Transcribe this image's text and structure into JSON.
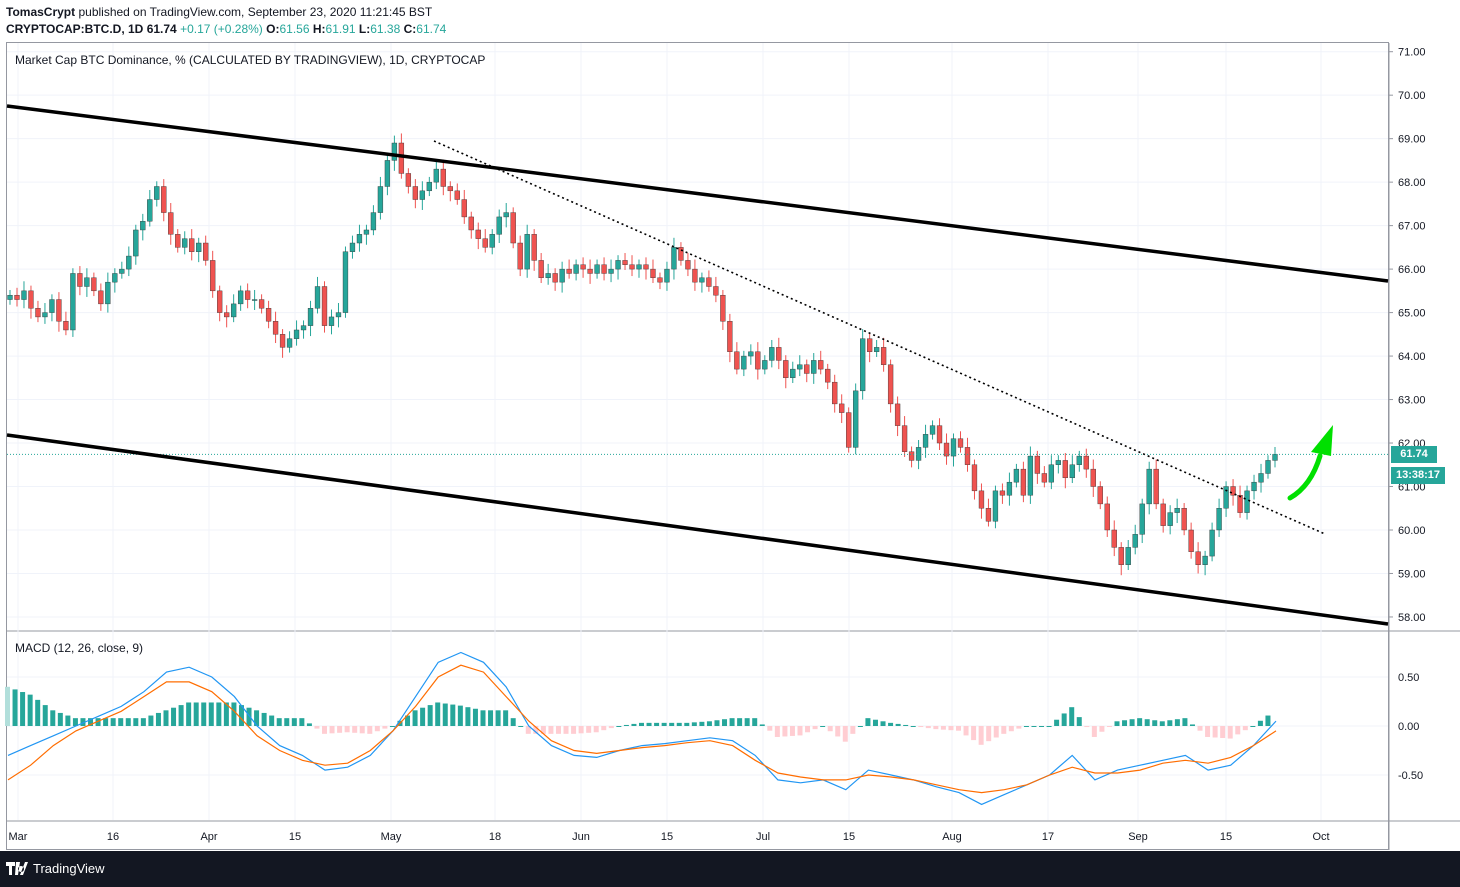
{
  "header": {
    "author": "TomasCrypt",
    "published": "published on TradingView.com, September 23, 2020 11:21:45 BST",
    "symbol": "CRYPTOCAP:BTC.D, 1D",
    "last": "61.74",
    "change": "+0.17 (+0.28%)",
    "o_label": "O:",
    "o": "61.56",
    "h_label": "H:",
    "h": "61.91",
    "l_label": "L:",
    "l": "61.38",
    "c_label": "C:",
    "c": "61.74"
  },
  "main_panel": {
    "title": "Market Cap BTC Dominance, % (CALCULATED BY TRADINGVIEW), 1D, CRYPTOCAP",
    "price_label": "61.74",
    "countdown_label": "13:38:17"
  },
  "macd_panel": {
    "title": "MACD (12, 26, close, 9)"
  },
  "colors": {
    "up": "#26a69a",
    "down": "#ef5350",
    "macd_line": "#2196f3",
    "signal_line": "#ff6d00",
    "arrow": "#00e000",
    "channel": "#000000"
  },
  "footer": {
    "brand": "TradingView"
  },
  "chart_data": {
    "type": "candlestick",
    "y_axis_ticks": [
      "71.00",
      "70.00",
      "69.00",
      "68.00",
      "67.00",
      "66.00",
      "65.00",
      "64.00",
      "63.00",
      "62.00",
      "61.00",
      "60.00",
      "59.00",
      "58.00"
    ],
    "ylim": [
      57.7,
      71.2
    ],
    "macd_axis_ticks": [
      "0.50",
      "0.00",
      "-0.50"
    ],
    "x_axis_ticks": [
      "Mar",
      "16",
      "Apr",
      "15",
      "May",
      "18",
      "Jun",
      "15",
      "Jul",
      "15",
      "Aug",
      "17",
      "Sep",
      "15",
      "Oct"
    ],
    "closes": [
      65.4,
      65.3,
      65.5,
      65.1,
      64.9,
      65.0,
      65.3,
      64.8,
      64.6,
      65.9,
      65.6,
      65.8,
      65.5,
      65.2,
      65.7,
      65.9,
      66.0,
      66.3,
      66.9,
      67.1,
      67.6,
      67.9,
      67.3,
      66.8,
      66.5,
      66.7,
      66.4,
      66.6,
      66.2,
      65.5,
      65.0,
      64.9,
      65.2,
      65.5,
      65.3,
      65.3,
      65.1,
      64.8,
      64.5,
      64.2,
      64.4,
      64.6,
      64.7,
      65.1,
      65.6,
      64.7,
      64.9,
      65.0,
      66.4,
      66.6,
      66.8,
      66.9,
      67.3,
      67.9,
      68.5,
      68.9,
      68.2,
      67.9,
      67.6,
      67.8,
      68.0,
      68.3,
      67.9,
      67.8,
      67.6,
      67.2,
      66.9,
      66.7,
      66.5,
      66.8,
      67.2,
      67.3,
      66.6,
      66.0,
      66.8,
      66.2,
      65.8,
      65.9,
      65.7,
      66.0,
      65.9,
      66.1,
      66.0,
      65.9,
      66.1,
      65.9,
      66.0,
      66.2,
      66.1,
      66.0,
      66.1,
      66.0,
      65.8,
      65.7,
      66.0,
      66.5,
      66.2,
      66.0,
      65.7,
      65.8,
      65.6,
      65.4,
      64.8,
      64.1,
      63.7,
      64.0,
      64.1,
      63.7,
      63.9,
      64.2,
      63.9,
      63.5,
      63.7,
      63.8,
      63.6,
      63.9,
      63.7,
      63.4,
      62.9,
      62.7,
      61.9,
      63.2,
      64.4,
      64.1,
      64.2,
      63.8,
      62.9,
      62.4,
      61.8,
      61.6,
      61.9,
      62.2,
      62.4,
      62.0,
      61.7,
      62.1,
      61.9,
      61.5,
      60.9,
      60.5,
      60.2,
      60.9,
      60.8,
      61.1,
      61.4,
      60.8,
      61.7,
      61.3,
      61.1,
      61.5,
      61.6,
      61.2,
      61.5,
      61.7,
      61.4,
      61.0,
      60.6,
      60.0,
      59.6,
      59.2,
      59.6,
      59.9,
      60.6,
      61.4,
      60.6,
      60.1,
      60.4,
      60.5,
      60.0,
      59.5,
      59.2,
      59.4,
      60.0,
      60.5,
      61.0,
      60.8,
      60.4,
      60.9,
      61.1,
      61.3,
      61.6,
      61.74
    ],
    "series": [
      {
        "name": "MACD",
        "values": [
          -0.3,
          -0.2,
          -0.1,
          0.0,
          0.1,
          0.2,
          0.35,
          0.55,
          0.6,
          0.5,
          0.3,
          0.0,
          -0.2,
          -0.3,
          -0.45,
          -0.42,
          -0.3,
          -0.05,
          0.3,
          0.65,
          0.75,
          0.65,
          0.4,
          0.0,
          -0.2,
          -0.3,
          -0.32,
          -0.25,
          -0.2,
          -0.18,
          -0.15,
          -0.12,
          -0.15,
          -0.3,
          -0.55,
          -0.58,
          -0.55,
          -0.65,
          -0.45,
          -0.5,
          -0.55,
          -0.62,
          -0.68,
          -0.8,
          -0.7,
          -0.6,
          -0.5,
          -0.3,
          -0.55,
          -0.45,
          -0.4,
          -0.35,
          -0.3,
          -0.45,
          -0.4,
          -0.2,
          0.05
        ]
      },
      {
        "name": "Signal",
        "values": [
          -0.55,
          -0.4,
          -0.2,
          -0.05,
          0.05,
          0.15,
          0.3,
          0.45,
          0.45,
          0.35,
          0.15,
          -0.1,
          -0.25,
          -0.35,
          -0.4,
          -0.38,
          -0.25,
          -0.05,
          0.2,
          0.5,
          0.62,
          0.55,
          0.3,
          0.05,
          -0.15,
          -0.25,
          -0.28,
          -0.25,
          -0.22,
          -0.2,
          -0.17,
          -0.15,
          -0.2,
          -0.35,
          -0.48,
          -0.52,
          -0.55,
          -0.55,
          -0.5,
          -0.52,
          -0.55,
          -0.6,
          -0.65,
          -0.68,
          -0.65,
          -0.6,
          -0.5,
          -0.42,
          -0.48,
          -0.48,
          -0.45,
          -0.38,
          -0.35,
          -0.38,
          -0.32,
          -0.2,
          -0.05
        ]
      }
    ]
  }
}
